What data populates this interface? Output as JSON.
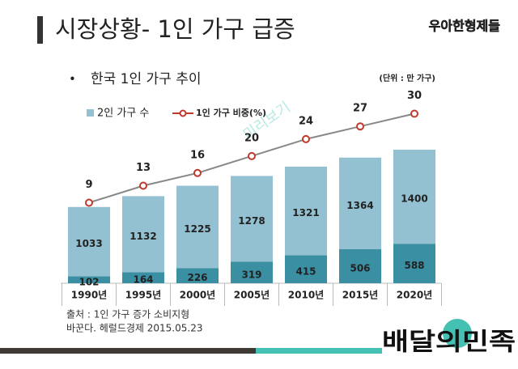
{
  "header": {
    "title": "시장상황- 1인 가구 급증",
    "logo": "우아한형제들"
  },
  "bullet": "한국 1인 가구 추이",
  "unit": "(단위 : 만 가구)",
  "watermark": "미리보기",
  "chart_data": {
    "type": "bar",
    "stacked": true,
    "categories": [
      "1990년",
      "1995년",
      "2000년",
      "2005년",
      "2010년",
      "2015년",
      "2020년"
    ],
    "series": [
      {
        "color": "#3b8fa3",
        "values": [
          102,
          164,
          226,
          319,
          415,
          506,
          588
        ]
      },
      {
        "name": "2인 가구 수",
        "color": "#93c1d2",
        "values": [
          1033,
          1132,
          1225,
          1278,
          1321,
          1364,
          1400
        ]
      },
      {
        "name": "1인 가구 비중(%)",
        "type": "line",
        "axis": "y2",
        "color": "#888888",
        "marker_color": "#c0392b",
        "values": [
          9,
          13,
          16,
          20,
          24,
          27,
          30
        ]
      }
    ],
    "ylim": [
      0,
      2650
    ],
    "y2lim": [
      -10,
      32
    ]
  },
  "source": [
    "출처 : 1인 가구 증가 소비지형",
    "바꾼다. 헤럴드경제 2015.05.23"
  ],
  "footer": {
    "brand": "배달의민족"
  }
}
